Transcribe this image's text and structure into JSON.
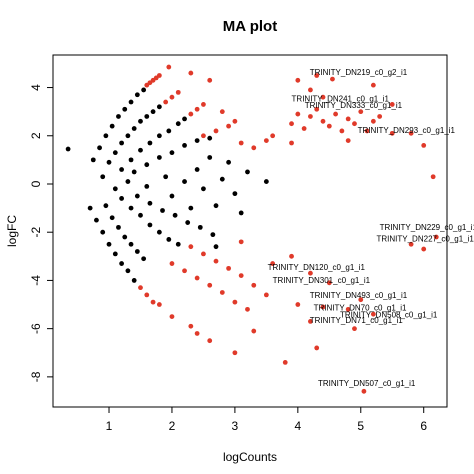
{
  "chart_data": {
    "type": "scatter",
    "title": "MA plot",
    "x_label": "logCounts",
    "y_label": "logFC",
    "xlim": [
      0.11,
      6.37
    ],
    "ylim": [
      -9.25,
      5.35
    ],
    "xticks": [
      1,
      2,
      3,
      4,
      5,
      6
    ],
    "yticks": [
      -8,
      -6,
      -4,
      -2,
      0,
      2,
      4
    ],
    "series": [
      {
        "color": "#000000",
        "x": [
          0.75,
          0.85,
          0.95,
          1.05,
          1.15,
          1.25,
          1.35,
          1.45,
          1.55,
          1.0,
          1.1,
          1.2,
          1.3,
          1.4,
          1.5,
          1.6,
          1.7,
          1.8,
          1.2,
          1.35,
          1.5,
          1.65,
          1.8,
          1.95,
          2.1,
          2.2,
          1.4,
          1.6,
          1.8,
          2.0,
          2.2,
          2.4,
          2.6,
          0.7,
          0.8,
          0.9,
          1.0,
          1.1,
          1.2,
          1.3,
          1.4,
          0.95,
          1.05,
          1.15,
          1.25,
          1.35,
          1.45,
          1.55,
          1.2,
          1.35,
          1.5,
          1.65,
          1.8,
          1.95,
          2.1,
          1.45,
          1.65,
          1.85,
          2.05,
          2.25,
          2.45,
          2.65,
          0.35,
          0.9,
          1.1,
          1.3,
          1.6,
          1.9,
          2.2,
          2.5,
          2.8,
          3.0,
          3.2,
          2.4,
          2.7,
          3.1,
          3.5,
          2.0,
          2.6,
          2.9,
          2.3,
          2.7
        ],
        "y": [
          1.0,
          1.5,
          2.0,
          2.4,
          2.8,
          3.1,
          3.4,
          3.7,
          3.9,
          0.9,
          1.3,
          1.7,
          2.0,
          2.3,
          2.6,
          2.8,
          3.0,
          3.2,
          0.6,
          1.0,
          1.4,
          1.7,
          2.0,
          2.2,
          2.5,
          2.7,
          0.5,
          0.8,
          1.1,
          1.3,
          1.6,
          1.8,
          1.9,
          -1.0,
          -1.5,
          -2.0,
          -2.5,
          -2.9,
          -3.3,
          -3.6,
          -4.0,
          -0.9,
          -1.4,
          -1.8,
          -2.2,
          -2.5,
          -2.8,
          -3.1,
          -0.6,
          -1.0,
          -1.3,
          -1.7,
          -2.0,
          -2.3,
          -2.5,
          -0.5,
          -0.8,
          -1.1,
          -1.3,
          -1.6,
          -1.8,
          -2.1,
          1.45,
          0.3,
          -0.2,
          0.1,
          -0.1,
          0.3,
          0.1,
          -0.2,
          0.2,
          -0.4,
          0.5,
          0.6,
          -0.9,
          -1.2,
          0.1,
          -0.5,
          1.1,
          0.9,
          -1.0,
          -2.6
        ]
      },
      {
        "color": "#e03a2a",
        "x": [
          1.6,
          1.65,
          1.7,
          1.75,
          1.8,
          1.9,
          2.0,
          2.1,
          2.3,
          2.4,
          2.5,
          2.7,
          2.9,
          3.0,
          1.95,
          2.3,
          2.6,
          2.8,
          3.3,
          3.5,
          3.6,
          3.1,
          2.5,
          3.9,
          4.0,
          4.1,
          4.2,
          4.3,
          4.4,
          4.5,
          4.6,
          4.7,
          4.8,
          4.9,
          5.0,
          5.1,
          5.2,
          5.3,
          5.5,
          4.4,
          4.2,
          4.0,
          4.55,
          4.3,
          5.2,
          5.5,
          5.8,
          6.0,
          6.15,
          3.9,
          4.8,
          1.5,
          1.6,
          1.7,
          1.8,
          2.0,
          2.2,
          2.4,
          2.6,
          2.8,
          3.0,
          2.3,
          2.5,
          2.7,
          2.9,
          3.1,
          3.3,
          3.5,
          2.0,
          2.3,
          2.6,
          2.4,
          3.0,
          3.2,
          3.3,
          3.8,
          4.0,
          3.6,
          3.9,
          4.2,
          4.5,
          4.4,
          4.2,
          4.8,
          4.9,
          5.0,
          5.2,
          5.05,
          4.3,
          5.8,
          6.0,
          6.2,
          3.1
        ],
        "y": [
          4.1,
          4.2,
          4.3,
          4.4,
          4.5,
          3.4,
          3.6,
          3.8,
          2.9,
          3.1,
          3.3,
          2.2,
          2.4,
          2.6,
          4.85,
          4.6,
          4.3,
          3.0,
          1.5,
          1.8,
          2.0,
          1.7,
          2.0,
          2.5,
          2.9,
          2.3,
          2.8,
          3.1,
          2.6,
          2.4,
          2.9,
          2.2,
          2.7,
          2.5,
          3.0,
          2.2,
          2.6,
          2.8,
          2.1,
          3.6,
          3.9,
          4.3,
          4.35,
          4.5,
          4.1,
          3.3,
          2.1,
          1.6,
          0.3,
          1.7,
          1.8,
          -4.3,
          -4.6,
          -4.9,
          -5.0,
          -3.3,
          -3.6,
          -3.9,
          -4.2,
          -4.5,
          -4.9,
          -2.6,
          -2.9,
          -3.2,
          -3.5,
          -3.8,
          -4.2,
          -4.6,
          -5.5,
          -5.9,
          -6.5,
          -6.2,
          -7.0,
          -5.2,
          -6.1,
          -7.4,
          -5.0,
          -3.3,
          -3.0,
          -3.7,
          -4.1,
          -5.1,
          -5.7,
          -5.2,
          -6.0,
          -4.8,
          -5.4,
          -8.6,
          -6.8,
          -2.5,
          -2.7,
          -2.2,
          -2.4
        ]
      }
    ],
    "annotations": [
      {
        "text": "TRINITY_DN219_c0_g2_i1",
        "x": 4.19,
        "y": 4.6
      },
      {
        "text": "TRINITY_DN241_c0_g1_i1",
        "x": 3.9,
        "y": 3.5
      },
      {
        "text": "TRINITY_DN333_c0_g1_i1",
        "x": 4.11,
        "y": 3.24
      },
      {
        "text": "TRINITY_DN293_c0_g1_i1",
        "x": 4.95,
        "y": 2.2
      },
      {
        "text": "TRINITY_DN229_c0_g1_i1",
        "x": 5.3,
        "y": -1.83
      },
      {
        "text": "TRINITY_DN227_c0_g1_i1",
        "x": 5.25,
        "y": -2.3
      },
      {
        "text": "TRINITY_DN120_c0_g1_i1",
        "x": 3.52,
        "y": -3.49
      },
      {
        "text": "TRINITY_DN301_c0_g1_i1",
        "x": 3.6,
        "y": -4.02
      },
      {
        "text": "TRINITY_DN493_c0_g1_i1",
        "x": 4.19,
        "y": -4.65
      },
      {
        "text": "TRINITY_DN70_c0_g1_i1",
        "x": 4.25,
        "y": -5.15
      },
      {
        "text": "TRINITY_DN508_c0_g1_i1",
        "x": 4.67,
        "y": -5.44
      },
      {
        "text": "TRINITY_DN71_c0_g1_i1",
        "x": 4.19,
        "y": -5.68
      },
      {
        "text": "TRINITY_DN507_c0_g1_i1",
        "x": 4.32,
        "y": -8.3
      }
    ]
  }
}
